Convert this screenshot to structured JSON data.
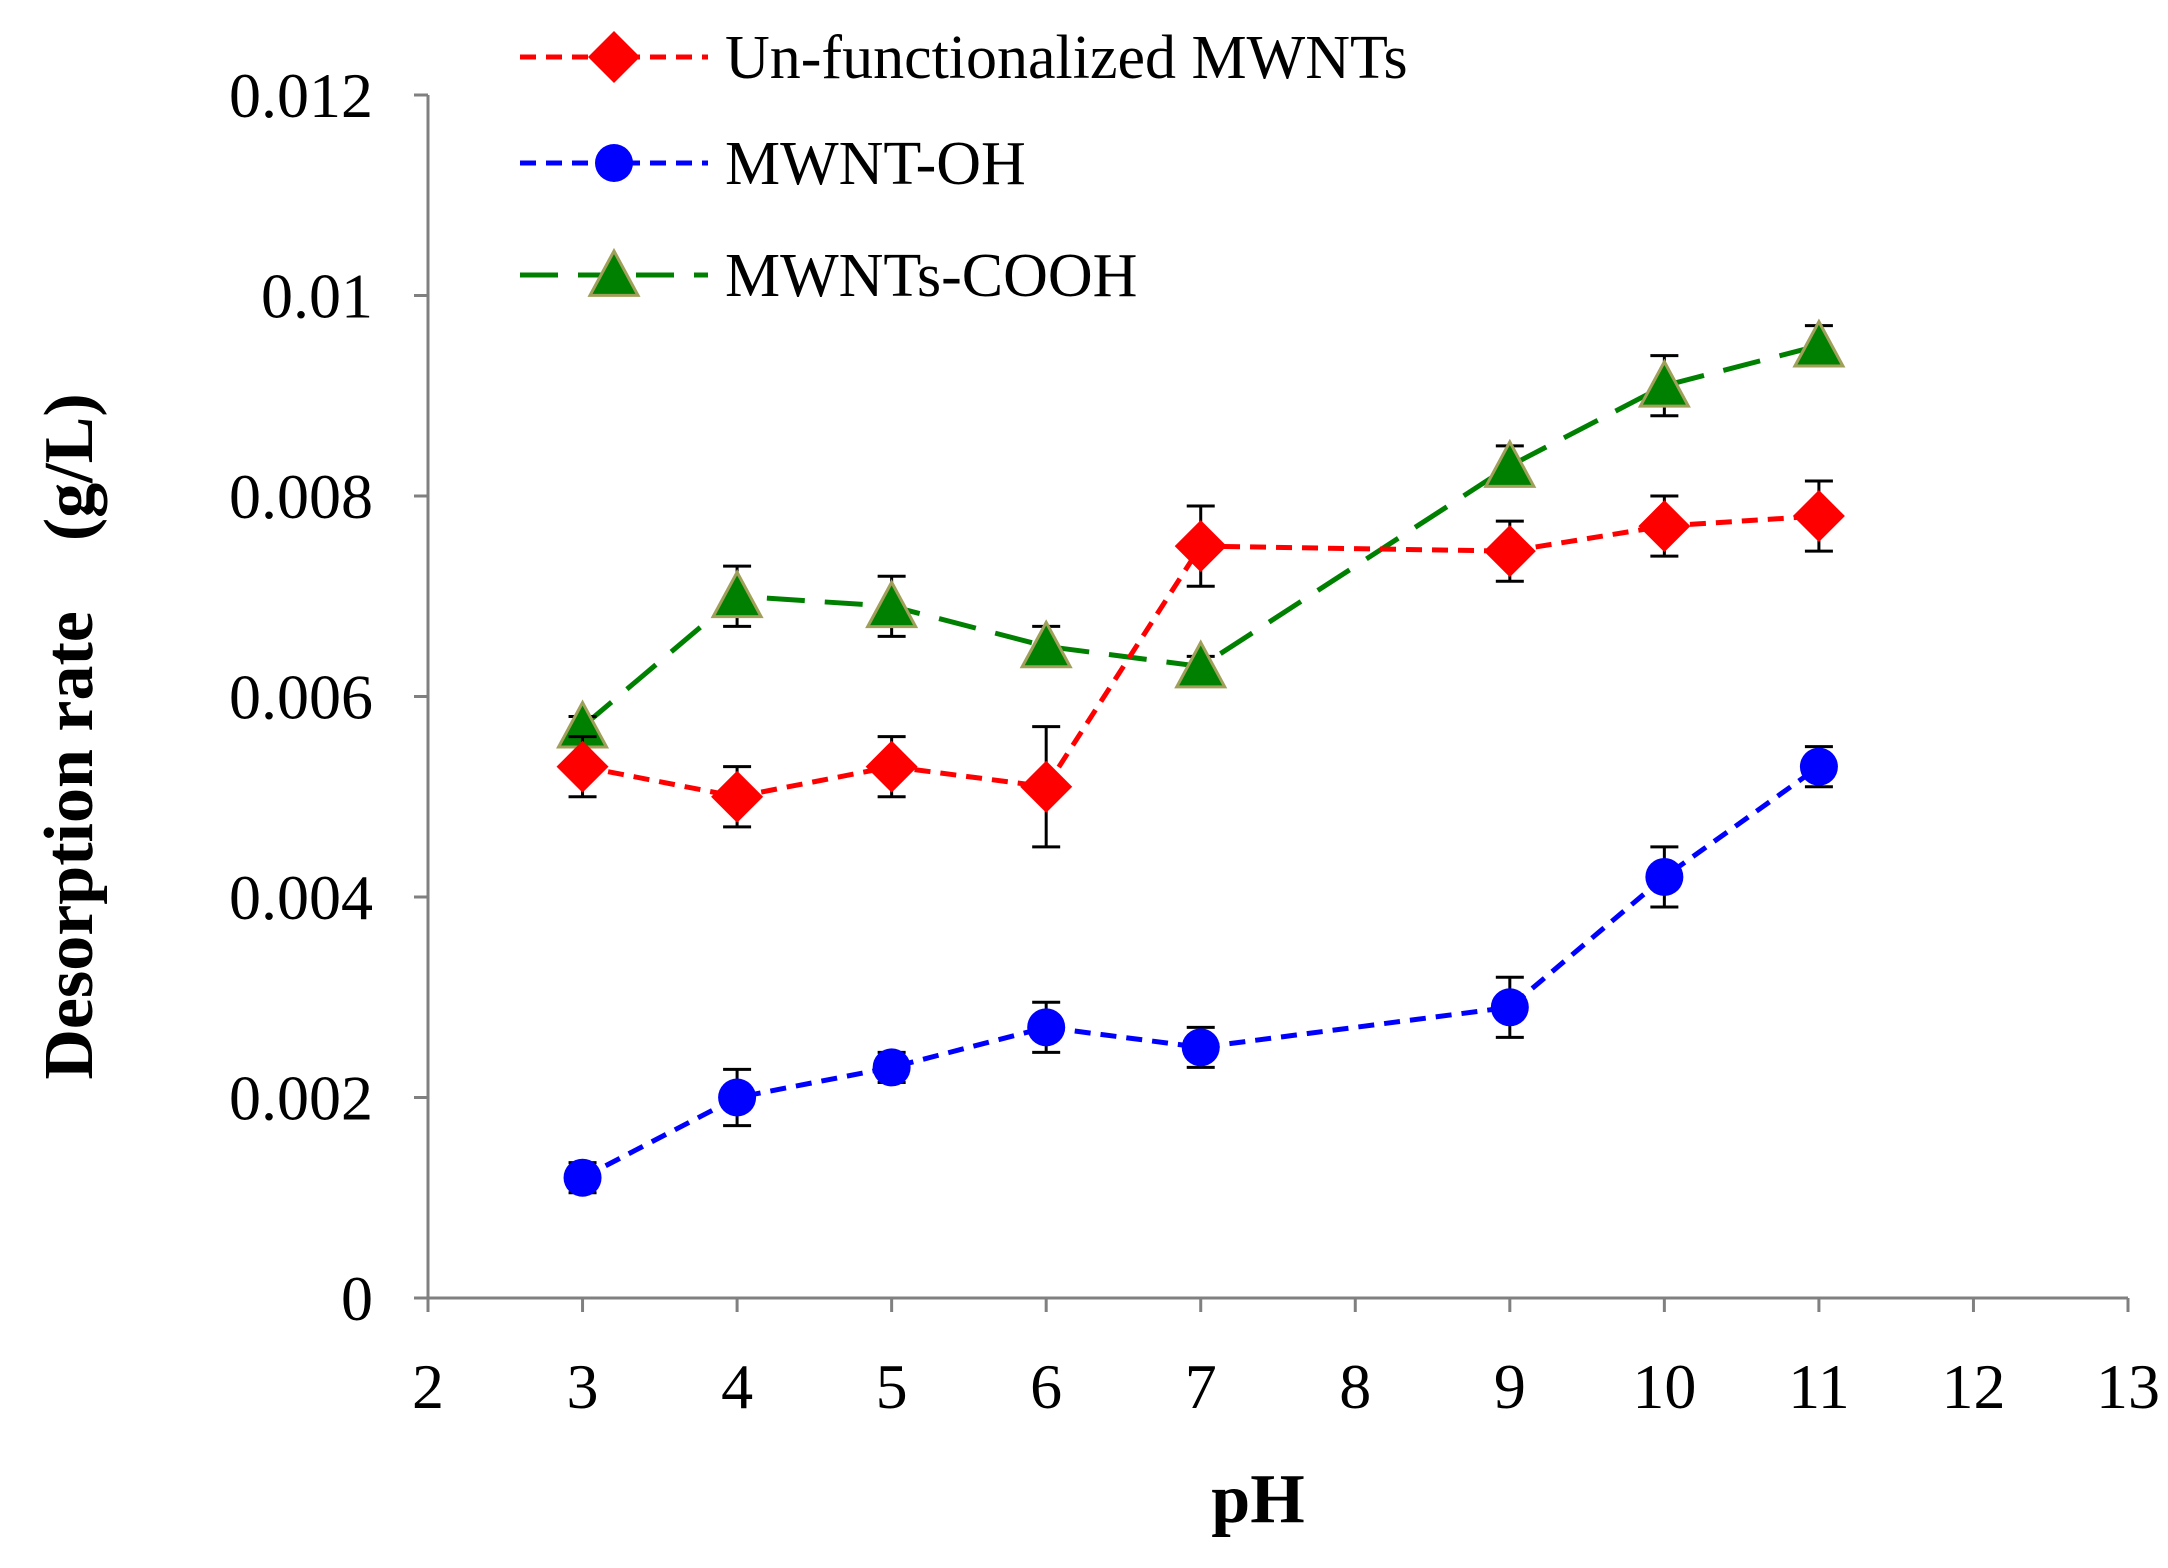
{
  "chart_data": {
    "type": "line",
    "title": "",
    "xlabel": "pH",
    "ylabel": "Desorption rate　(g/L)",
    "xlim": [
      2,
      13
    ],
    "ylim": [
      0,
      0.012
    ],
    "x_ticks": [
      2,
      3,
      4,
      5,
      6,
      7,
      8,
      9,
      10,
      11,
      12,
      13
    ],
    "y_ticks": [
      0,
      0.002,
      0.004,
      0.006,
      0.008,
      0.01,
      0.012
    ],
    "y_tick_labels": [
      "0",
      "0.002",
      "0.004",
      "0.006",
      "0.008",
      "0.01",
      "0.012"
    ],
    "grid": false,
    "legend_position": "top",
    "series": [
      {
        "name": "Un-functionalized MWNTs",
        "color": "#ff0000",
        "marker": "diamond",
        "line_style": "dashed",
        "x": [
          3,
          4,
          5,
          6,
          7,
          9,
          10,
          11
        ],
        "values": [
          0.0053,
          0.005,
          0.0053,
          0.0051,
          0.0075,
          0.00745,
          0.0077,
          0.0078
        ],
        "errors": [
          0.0003,
          0.0003,
          0.0003,
          0.0006,
          0.0004,
          0.0003,
          0.0003,
          0.00035
        ]
      },
      {
        "name": "MWNT-OH",
        "color": "#0000ff",
        "marker": "circle",
        "line_style": "dashed",
        "x": [
          3,
          4,
          5,
          6,
          7,
          9,
          10,
          11
        ],
        "values": [
          0.0012,
          0.002,
          0.0023,
          0.0027,
          0.0025,
          0.0029,
          0.0042,
          0.0053
        ],
        "errors": [
          0.00015,
          0.00028,
          0.00015,
          0.00025,
          0.0002,
          0.0003,
          0.0003,
          0.0002
        ]
      },
      {
        "name": "MWNTs-COOH",
        "color": "#008000",
        "marker": "triangle",
        "line_style": "long-dashed",
        "x": [
          3,
          4,
          5,
          6,
          7,
          9,
          10,
          11
        ],
        "values": [
          0.0057,
          0.007,
          0.0069,
          0.0065,
          0.0063,
          0.0083,
          0.0091,
          0.0095
        ],
        "errors": [
          0.0001,
          0.0003,
          0.0003,
          0.0002,
          0.0001,
          0.0002,
          0.0003,
          0.0002
        ]
      }
    ]
  }
}
